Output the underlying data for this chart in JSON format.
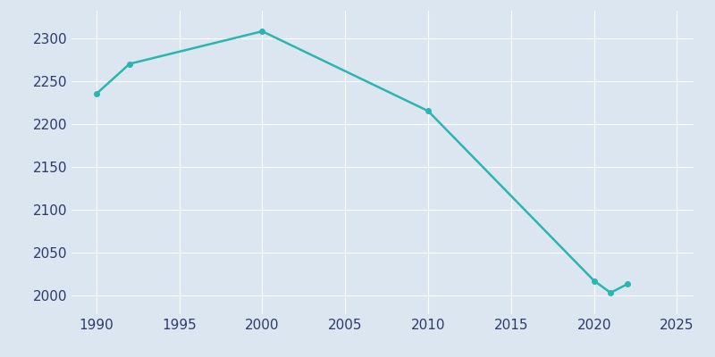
{
  "years": [
    1990,
    1992,
    2000,
    2010,
    2020,
    2021,
    2022
  ],
  "population": [
    2235,
    2270,
    2308,
    2215,
    2017,
    2003,
    2013
  ],
  "line_color": "#2ab5b0",
  "marker_color": "#2ab5b0",
  "bg_color": "#dce6f0",
  "axes_bg_color": "#dce6f0",
  "grid_color": "#ffffff",
  "tick_color": "#2d3a6b",
  "xlim": [
    1988.5,
    2026
  ],
  "ylim": [
    1978,
    2332
  ],
  "xticks": [
    1990,
    1995,
    2000,
    2005,
    2010,
    2015,
    2020,
    2025
  ],
  "yticks": [
    2000,
    2050,
    2100,
    2150,
    2200,
    2250,
    2300
  ],
  "linewidth": 1.8,
  "markersize": 4,
  "tick_labelsize": 11
}
